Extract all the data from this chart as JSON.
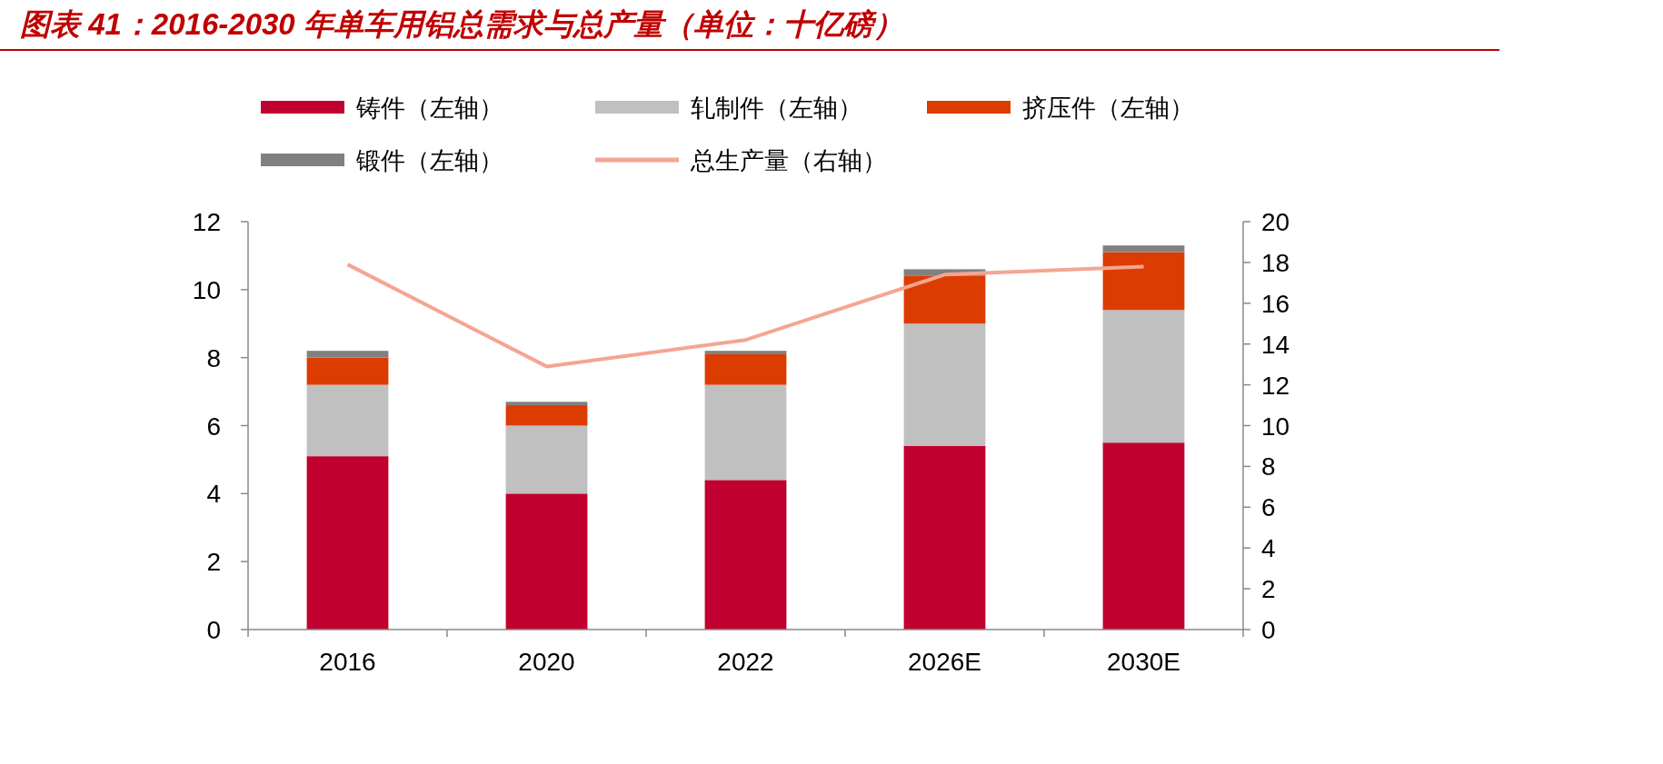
{
  "chart_data": {
    "type": "bar",
    "title": "图表 41：2016-2030 年单车用铝总需求与总产量（单位：十亿磅）",
    "categories": [
      "2016",
      "2020",
      "2022",
      "2026E",
      "2030E"
    ],
    "stacked": true,
    "legend": "top",
    "grid": false,
    "series": [
      {
        "name": "铸件（左轴）",
        "color": "#c0002f",
        "values": [
          5.1,
          4.0,
          4.4,
          5.4,
          5.5
        ]
      },
      {
        "name": "轧制件（左轴）",
        "color": "#c0c0c0",
        "values": [
          2.1,
          2.0,
          2.8,
          3.6,
          3.9
        ]
      },
      {
        "name": "挤压件（左轴）",
        "color": "#dd3c00",
        "values": [
          0.8,
          0.6,
          0.9,
          1.4,
          1.7
        ]
      },
      {
        "name": "锻件（左轴）",
        "color": "#808080",
        "values": [
          0.2,
          0.1,
          0.1,
          0.2,
          0.2
        ]
      },
      {
        "name": "总生产量（右轴）",
        "type": "line",
        "axis": "y2",
        "color": "#f4a593",
        "values": [
          17.9,
          12.9,
          14.2,
          17.4,
          17.8
        ]
      }
    ],
    "ylim": [
      0,
      12
    ],
    "yticks": [
      0,
      2,
      4,
      6,
      8,
      10,
      12
    ],
    "y2lim": [
      0,
      20
    ],
    "y2ticks": [
      0,
      2,
      4,
      6,
      8,
      10,
      12,
      14,
      16,
      18,
      20
    ]
  }
}
